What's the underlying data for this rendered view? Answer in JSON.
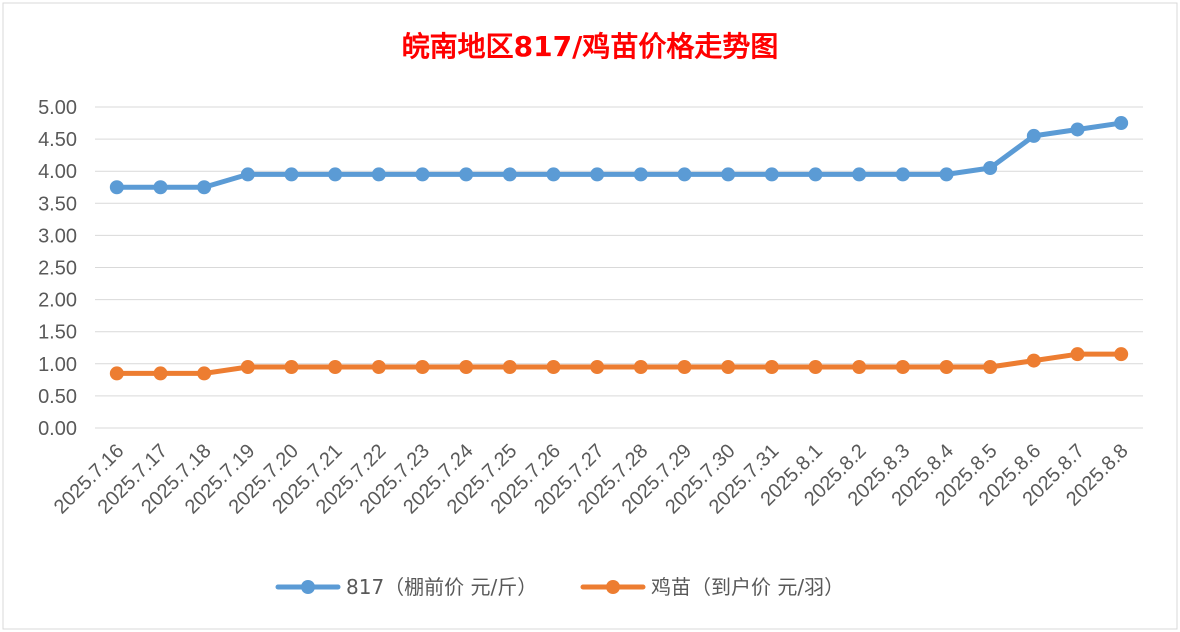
{
  "chart_data": {
    "type": "line",
    "title": "皖南地区817/鸡苗价格走势图",
    "title_color": "#ff0000",
    "categories": [
      "2025.7.16",
      "2025.7.17",
      "2025.7.18",
      "2025.7.19",
      "2025.7.20",
      "2025.7.21",
      "2025.7.22",
      "2025.7.23",
      "2025.7.24",
      "2025.7.25",
      "2025.7.26",
      "2025.7.27",
      "2025.7.28",
      "2025.7.29",
      "2025.7.30",
      "2025.7.31",
      "2025.8.1",
      "2025.8.2",
      "2025.8.3",
      "2025.8.4",
      "2025.8.5",
      "2025.8.6",
      "2025.8.7",
      "2025.8.8"
    ],
    "series": [
      {
        "name": "817（棚前价 元/斤）",
        "color": "#5b9bd5",
        "values": [
          3.75,
          3.75,
          3.75,
          3.95,
          3.95,
          3.95,
          3.95,
          3.95,
          3.95,
          3.95,
          3.95,
          3.95,
          3.95,
          3.95,
          3.95,
          3.95,
          3.95,
          3.95,
          3.95,
          3.95,
          4.05,
          4.55,
          4.65,
          4.75
        ]
      },
      {
        "name": "鸡苗（到户价 元/羽）",
        "color": "#ed7d31",
        "values": [
          0.85,
          0.85,
          0.85,
          0.95,
          0.95,
          0.95,
          0.95,
          0.95,
          0.95,
          0.95,
          0.95,
          0.95,
          0.95,
          0.95,
          0.95,
          0.95,
          0.95,
          0.95,
          0.95,
          0.95,
          0.95,
          1.05,
          1.15,
          1.15
        ]
      }
    ],
    "y_ticks": [
      "0.00",
      "0.50",
      "1.00",
      "1.50",
      "2.00",
      "2.50",
      "3.00",
      "3.50",
      "4.00",
      "4.50",
      "5.00"
    ],
    "ylim": [
      0,
      5
    ],
    "grid": true,
    "legend_position": "bottom"
  }
}
